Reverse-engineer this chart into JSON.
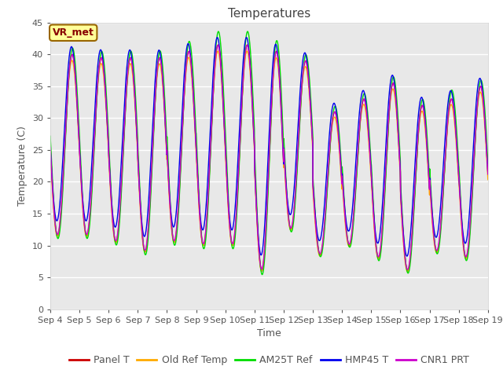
{
  "title": "Temperatures",
  "xlabel": "Time",
  "ylabel": "Temperature (C)",
  "ylim": [
    0,
    45
  ],
  "series_colors": {
    "Panel T": "#cc0000",
    "Old Ref Temp": "#ffaa00",
    "AM25T Ref": "#00dd00",
    "HMP45 T": "#0000ee",
    "CNR1 PRT": "#cc00cc"
  },
  "series_names": [
    "Panel T",
    "Old Ref Temp",
    "AM25T Ref",
    "HMP45 T",
    "CNR1 PRT"
  ],
  "annotation_text": "VR_met",
  "annotation_bg": "#ffff99",
  "annotation_border": "#996600",
  "annotation_color": "#880000",
  "figure_bg": "#ffffff",
  "plot_bg": "#e8e8e8",
  "grid_color": "#ffffff",
  "title_fontsize": 11,
  "axis_fontsize": 9,
  "tick_fontsize": 8,
  "legend_fontsize": 9,
  "n_days": 15,
  "day_labels": [
    "Sep 4",
    "Sep 5",
    "Sep 6",
    "Sep 7",
    "Sep 8",
    "Sep 9",
    "Sep 10",
    "Sep 11",
    "Sep 12",
    "Sep 13",
    "Sep 14",
    "Sep 15",
    "Sep 16",
    "Sep 17",
    "Sep 18",
    "Sep 19"
  ],
  "peaks": [
    40.0,
    39.5,
    39.5,
    39.5,
    40.5,
    41.5,
    41.5,
    40.5,
    39.0,
    31.0,
    33.0,
    35.5,
    32.0,
    33.0,
    35.0
  ],
  "peaks_green": [
    40.0,
    39.5,
    39.5,
    39.5,
    41.0,
    42.5,
    42.5,
    41.0,
    39.0,
    31.0,
    33.0,
    35.5,
    32.0,
    33.5,
    35.0
  ],
  "troughs": [
    11.5,
    11.5,
    10.5,
    9.0,
    10.5,
    10.0,
    10.0,
    6.0,
    12.5,
    8.5,
    10.0,
    8.0,
    6.0,
    9.0,
    8.0
  ],
  "phase_offsets": {
    "Panel T": 0.0,
    "Old Ref Temp": 0.008,
    "AM25T Ref": -0.012,
    "HMP45 T": 0.025,
    "CNR1 PRT": 0.005
  },
  "amp_scales": {
    "Panel T": 1.0,
    "Old Ref Temp": 0.97,
    "AM25T Ref": 1.05,
    "HMP45 T": 0.96,
    "CNR1 PRT": 0.99
  },
  "temp_offsets": {
    "Panel T": 0.0,
    "Old Ref Temp": -0.5,
    "AM25T Ref": 0.3,
    "HMP45 T": 1.8,
    "CNR1 PRT": 0.1
  }
}
